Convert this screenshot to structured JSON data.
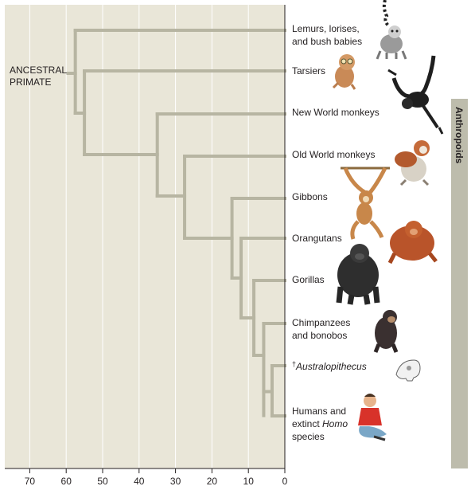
{
  "root_label": [
    "ANCESTRAL",
    "PRIMATE"
  ],
  "side_bar_label": "Anthropoids",
  "axis_ticks": [
    "70",
    "60",
    "50",
    "40",
    "30",
    "20",
    "10",
    "0"
  ],
  "taxa": [
    {
      "id": "lemurs",
      "lines": [
        "Lemurs, lorises,",
        "and bush babies"
      ],
      "animal": "lemur-illustration"
    },
    {
      "id": "tarsiers",
      "lines": [
        "Tarsiers"
      ],
      "animal": "tarsier-illustration"
    },
    {
      "id": "new-world-monkeys",
      "lines": [
        "New World monkeys"
      ],
      "animal": "spider-monkey-illustration"
    },
    {
      "id": "old-world-monkeys",
      "lines": [
        "Old World monkeys"
      ],
      "animal": "patas-monkey-illustration"
    },
    {
      "id": "gibbons",
      "lines": [
        "Gibbons"
      ],
      "animal": "gibbon-illustration"
    },
    {
      "id": "orangutans",
      "lines": [
        "Orangutans"
      ],
      "animal": "orangutan-illustration"
    },
    {
      "id": "gorillas",
      "lines": [
        "Gorillas"
      ],
      "animal": "gorilla-illustration"
    },
    {
      "id": "chimpanzees",
      "lines": [
        "Chimpanzees",
        "and bonobos"
      ],
      "animal": "chimpanzee-illustration"
    },
    {
      "id": "australopithecus",
      "lines": [
        "Australopithecus"
      ],
      "dagger": "†",
      "italic": true,
      "animal": "skull-illustration"
    },
    {
      "id": "humans",
      "lines": [
        "Humans and",
        "extinct Homo",
        "species"
      ],
      "italic_word": "Homo",
      "animal": "human-illustration"
    }
  ],
  "colors": {
    "panel_bg": "#e9e6d8",
    "branch": "#b7b5a2",
    "grid": "#ffffff",
    "side_bar": "#bdbcac",
    "axis": "#231f20"
  }
}
